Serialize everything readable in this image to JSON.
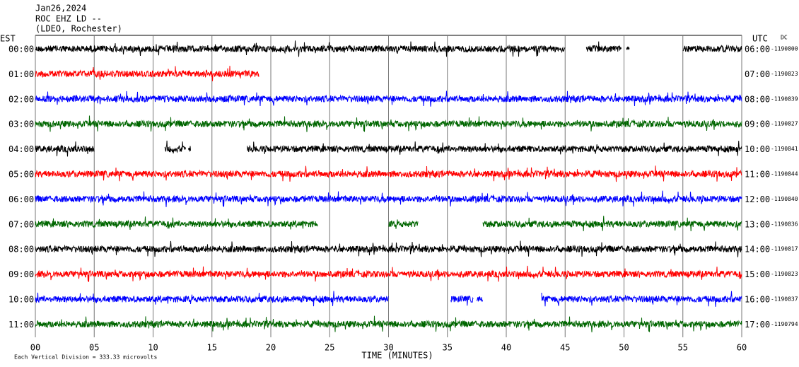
{
  "chart_data": {
    "type": "helicorder",
    "title_lines": [
      "Jan26,2024",
      "ROC EHZ LD --",
      "(LDEO, Rochester)"
    ],
    "left_label": "EST",
    "right_label": "UTC",
    "dc_label": "DC",
    "xlabel": "TIME (MINUTES)",
    "footer": "Each Vertical Division =  333.33 microvolts",
    "xlim": [
      0,
      60
    ],
    "xticks": [
      {
        "value": 0,
        "label": "00"
      },
      {
        "value": 5,
        "label": "05"
      },
      10,
      15,
      20,
      25,
      30,
      35,
      40,
      45,
      50,
      55,
      60
    ],
    "rows": [
      {
        "est": "00:00",
        "utc": "06:00",
        "dc": "-1190800",
        "color": "#000000",
        "segments": [
          [
            0,
            45
          ],
          [
            46.8,
            49.8
          ],
          [
            50.2,
            50.5
          ],
          [
            55,
            60
          ]
        ]
      },
      {
        "est": "01:00",
        "utc": "07:00",
        "dc": "-1190823",
        "color": "#ff0000",
        "segments": [
          [
            0,
            19
          ]
        ]
      },
      {
        "est": "02:00",
        "utc": "08:00",
        "dc": "-1190839",
        "color": "#0000ff",
        "segments": [
          [
            0,
            60
          ]
        ]
      },
      {
        "est": "03:00",
        "utc": "09:00",
        "dc": "-1190827",
        "color": "#006600",
        "segments": [
          [
            0,
            60
          ]
        ]
      },
      {
        "est": "04:00",
        "utc": "10:00",
        "dc": "-1190841",
        "color": "#000000",
        "segments": [
          [
            0,
            5
          ],
          [
            11,
            12.8
          ],
          [
            13,
            13.2
          ],
          [
            18,
            60
          ]
        ]
      },
      {
        "est": "05:00",
        "utc": "11:00",
        "dc": "-1190844",
        "color": "#ff0000",
        "segments": [
          [
            0,
            60
          ]
        ]
      },
      {
        "est": "06:00",
        "utc": "12:00",
        "dc": "-1190840",
        "color": "#0000ff",
        "segments": [
          [
            0,
            60
          ]
        ]
      },
      {
        "est": "07:00",
        "utc": "13:00",
        "dc": "-1190836",
        "color": "#006600",
        "segments": [
          [
            0,
            24
          ],
          [
            30,
            32.5
          ],
          [
            38,
            60
          ]
        ]
      },
      {
        "est": "08:00",
        "utc": "14:00",
        "dc": "-1190817",
        "color": "#000000",
        "segments": [
          [
            0,
            60
          ]
        ]
      },
      {
        "est": "09:00",
        "utc": "15:00",
        "dc": "-1190823",
        "color": "#ff0000",
        "segments": [
          [
            0,
            60
          ]
        ]
      },
      {
        "est": "10:00",
        "utc": "16:00",
        "dc": "-1190837",
        "color": "#0000ff",
        "segments": [
          [
            0,
            30
          ],
          [
            35.3,
            37.2
          ],
          [
            37.5,
            38
          ],
          [
            43,
            60
          ]
        ]
      },
      {
        "est": "11:00",
        "utc": "17:00",
        "dc": "-1190794",
        "color": "#006600",
        "segments": [
          [
            0,
            60
          ]
        ]
      }
    ]
  }
}
